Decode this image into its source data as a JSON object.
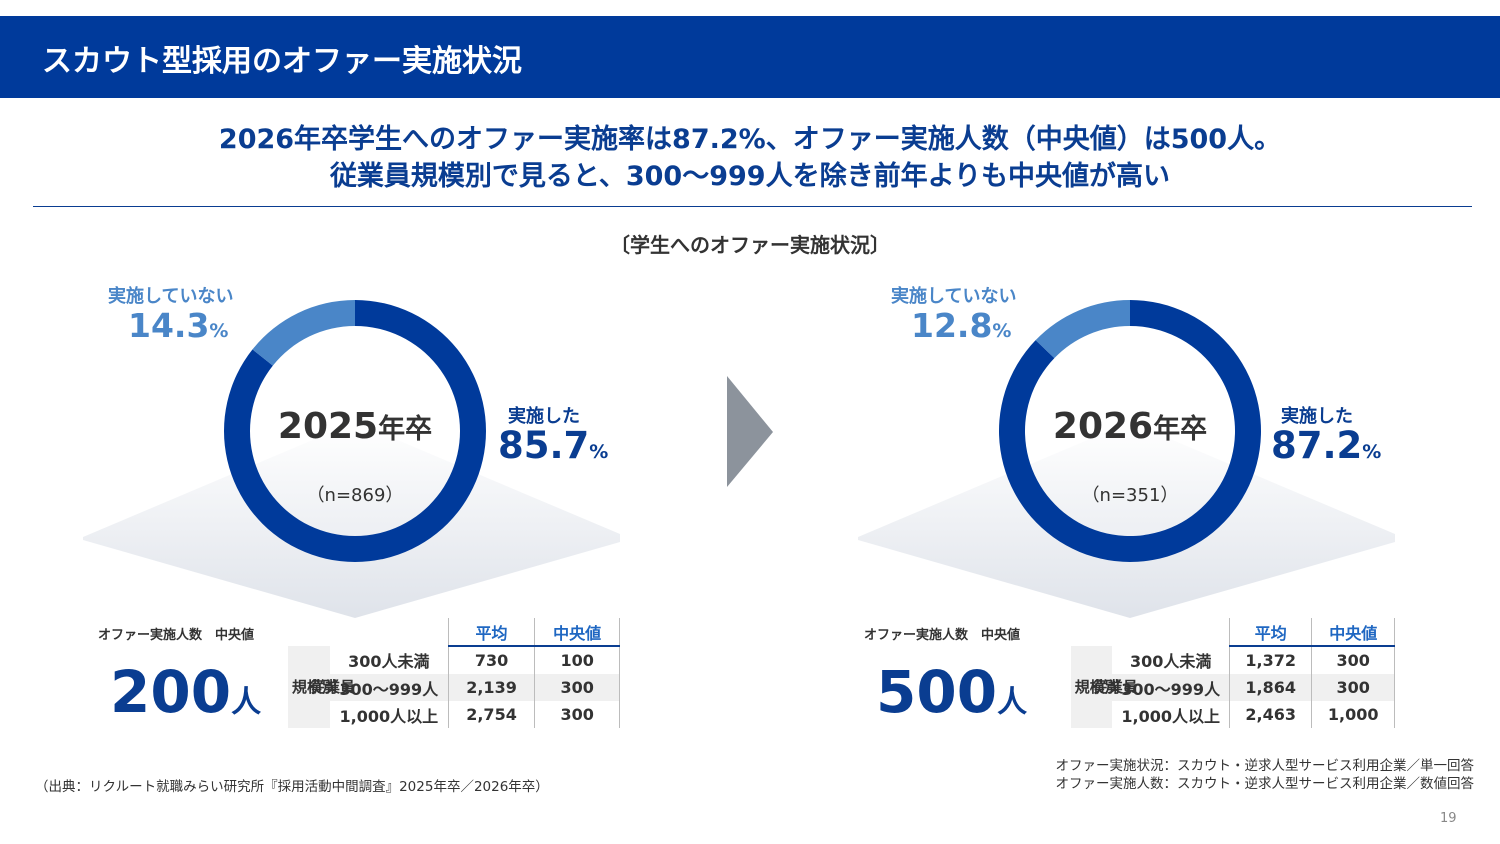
{
  "header": {
    "title": "スカウト型採用のオファー実施状況"
  },
  "headline": {
    "line1": "2026年卒学生へのオファー実施率は87.2%、オファー実施人数（中央値）は500人。",
    "line2": "従業員規模別で見ると、300〜999人を除き前年よりも中央値が高い"
  },
  "section_title": "〔学生へのオファー実施状況〕",
  "panels": [
    {
      "year": "2025",
      "year_suffix": "年卒",
      "n": "（n=869）",
      "not_implemented_label": "実施していない",
      "not_implemented_value": "14.3",
      "not_implemented_pct": 14.3,
      "implemented_label": "実施した",
      "implemented_value": "85.7",
      "implemented_pct": 85.7,
      "pct_sign": "%",
      "median_label": "オファー実施人数　中央値",
      "median_value": "200",
      "median_unit": "人",
      "table": {
        "header_avg": "平均",
        "header_median": "中央値",
        "group_label_col1": "規模別",
        "group_label_col2": "従業員",
        "rows": [
          {
            "label": "300人未満",
            "avg": "730",
            "median": "100"
          },
          {
            "label": "300〜999人",
            "avg": "2,139",
            "median": "300"
          },
          {
            "label": "1,000人以上",
            "avg": "2,754",
            "median": "300"
          }
        ]
      }
    },
    {
      "year": "2026",
      "year_suffix": "年卒",
      "n": "（n=351）",
      "not_implemented_label": "実施していない",
      "not_implemented_value": "12.8",
      "not_implemented_pct": 12.8,
      "implemented_label": "実施した",
      "implemented_value": "87.2",
      "implemented_pct": 87.2,
      "pct_sign": "%",
      "median_label": "オファー実施人数　中央値",
      "median_value": "500",
      "median_unit": "人",
      "table": {
        "header_avg": "平均",
        "header_median": "中央値",
        "group_label_col1": "規模別",
        "group_label_col2": "従業員",
        "rows": [
          {
            "label": "300人未満",
            "avg": "1,372",
            "median": "300"
          },
          {
            "label": "300〜999人",
            "avg": "1,864",
            "median": "300"
          },
          {
            "label": "1,000人以上",
            "avg": "2,463",
            "median": "1,000"
          }
        ]
      }
    }
  ],
  "colors": {
    "header_bg": "#003a9b",
    "implemented": "#003a9b",
    "not_implemented": "#4a86c8",
    "arrow": "#8c939c"
  },
  "source": "（出典：リクルート就職みらい研究所『採用活動中間調査』2025年卒／2026年卒）",
  "notes": {
    "line1": "オファー実施状況：スカウト・逆求人型サービス利用企業／単一回答",
    "line2": "オファー実施人数：スカウト・逆求人型サービス利用企業／数値回答"
  },
  "page_number": "19"
}
